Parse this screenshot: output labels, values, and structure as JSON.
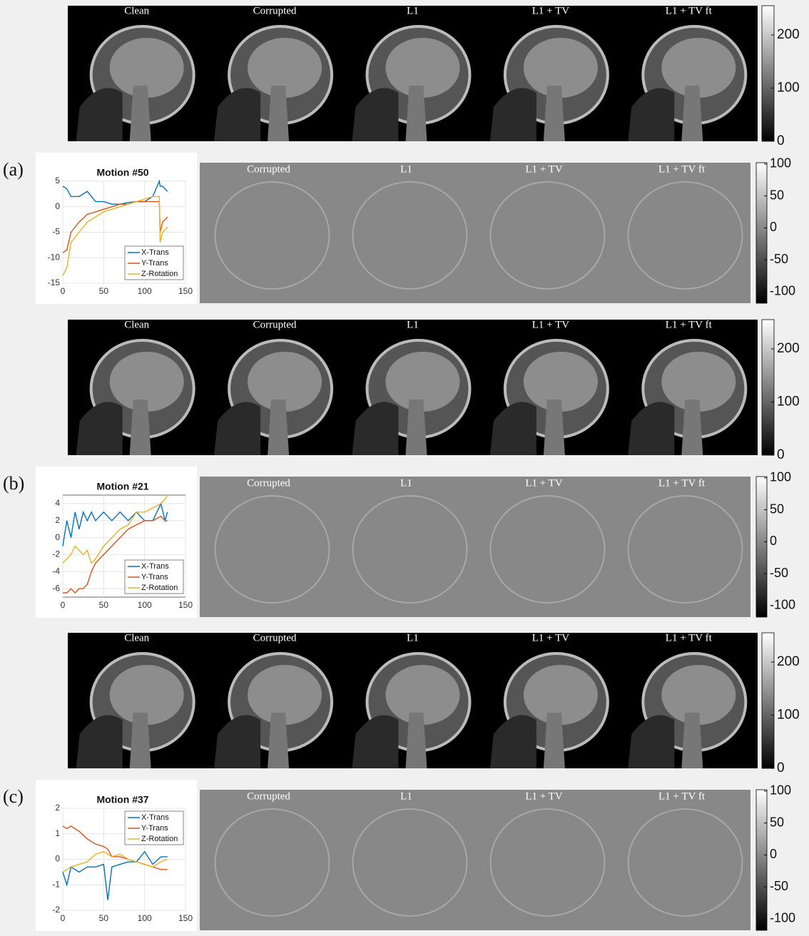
{
  "panels": [
    {
      "label": "(a)",
      "images": {
        "titles": [
          "Clean",
          "Corrupted",
          "L1",
          "L1 + TV",
          "L1 + TV ft"
        ],
        "colorbar": {
          "ylim": [
            0,
            255
          ],
          "yticks": [
            0,
            100,
            200
          ]
        }
      },
      "errors": {
        "titles": [
          "Corrupted",
          "L1",
          "L1 + TV",
          "L1 + TV ft"
        ],
        "colorbar": {
          "ylim": [
            -118,
            102
          ],
          "yticks": [
            100,
            50,
            0,
            -50,
            -100
          ]
        }
      },
      "chart_data": {
        "type": "line",
        "title": "Motion #50",
        "legend": "lower right",
        "grid": true,
        "x": [
          0,
          5,
          10,
          20,
          30,
          40,
          50,
          60,
          70,
          80,
          90,
          100,
          110,
          118,
          119,
          122,
          128
        ],
        "series": [
          {
            "name": "X-Trans",
            "color": "#0072bd",
            "values": [
              4,
              3.5,
              2,
              2,
              3,
              1,
              1,
              0.5,
              0.5,
              0.8,
              1,
              1,
              2,
              5,
              4,
              4,
              3
            ]
          },
          {
            "name": "Y-Trans",
            "color": "#d95319",
            "values": [
              -9,
              -8.5,
              -5,
              -3,
              -1.5,
              -1,
              -0.5,
              0,
              0.5,
              0.5,
              1,
              1,
              1,
              1,
              -5,
              -3,
              -2
            ]
          },
          {
            "name": "Z-Rotation",
            "color": "#edb120",
            "values": [
              -13.5,
              -12,
              -7,
              -5,
              -3,
              -2,
              -1,
              -0.5,
              0,
              0.5,
              1,
              1.5,
              2,
              2,
              -7,
              -5,
              -4
            ]
          }
        ],
        "xlim": [
          0,
          150
        ],
        "xticks": [
          0,
          50,
          100,
          150
        ],
        "ylim": [
          -15,
          5
        ],
        "yticks": [
          5,
          0,
          -5,
          -10,
          -15
        ]
      }
    },
    {
      "label": "(b)",
      "images": {
        "titles": [
          "Clean",
          "Corrupted",
          "L1",
          "L1 + TV",
          "L1 + TV ft"
        ],
        "colorbar": {
          "ylim": [
            0,
            255
          ],
          "yticks": [
            0,
            100,
            200
          ]
        }
      },
      "errors": {
        "titles": [
          "Corrupted",
          "L1",
          "L1 + TV",
          "L1 + TV ft"
        ],
        "colorbar": {
          "ylim": [
            -118,
            102
          ],
          "yticks": [
            100,
            50,
            0,
            -50,
            -100
          ]
        }
      },
      "chart_data": {
        "type": "line",
        "title": "Motion #21",
        "legend": "lower right",
        "grid": true,
        "x": [
          0,
          5,
          10,
          15,
          20,
          25,
          30,
          35,
          40,
          50,
          60,
          70,
          80,
          90,
          100,
          110,
          120,
          125,
          128
        ],
        "series": [
          {
            "name": "X-Trans",
            "color": "#0072bd",
            "values": [
              -1,
              2,
              0,
              3,
              1,
              3,
              2,
              3,
              2,
              3,
              2,
              3,
              2,
              3,
              2,
              2,
              4,
              2,
              3
            ]
          },
          {
            "name": "Y-Trans",
            "color": "#d95319",
            "values": [
              -6.5,
              -6.5,
              -6,
              -6.5,
              -6,
              -6,
              -5.5,
              -4,
              -3,
              -2,
              -1,
              0,
              1,
              1.5,
              2,
              2,
              2.5,
              2,
              2
            ]
          },
          {
            "name": "Z-Rotation",
            "color": "#edb120",
            "values": [
              -3,
              -2.5,
              -2,
              -1,
              -1.5,
              -2,
              -1.5,
              -3,
              -2.5,
              -1,
              0,
              1,
              1.5,
              3,
              3,
              3.5,
              4,
              4.5,
              5
            ]
          }
        ],
        "xlim": [
          0,
          150
        ],
        "xticks": [
          0,
          50,
          100,
          150
        ],
        "ylim": [
          -7,
          5
        ],
        "yticks": [
          4,
          2,
          0,
          -2,
          -4,
          -6
        ]
      }
    },
    {
      "label": "(c)",
      "images": {
        "titles": [
          "Clean",
          "Corrupted",
          "L1",
          "L1 + TV",
          "L1 + TV ft"
        ],
        "colorbar": {
          "ylim": [
            0,
            255
          ],
          "yticks": [
            0,
            100,
            200
          ]
        }
      },
      "errors": {
        "titles": [
          "Corrupted",
          "L1",
          "L1 + TV",
          "L1 + TV ft"
        ],
        "colorbar": {
          "ylim": [
            -118,
            102
          ],
          "yticks": [
            100,
            50,
            0,
            -50,
            -100
          ]
        }
      },
      "chart_data": {
        "type": "line",
        "title": "Motion #37",
        "legend": "upper right",
        "grid": true,
        "x": [
          0,
          5,
          10,
          20,
          30,
          40,
          50,
          55,
          60,
          70,
          80,
          90,
          100,
          110,
          120,
          128
        ],
        "series": [
          {
            "name": "X-Trans",
            "color": "#0072bd",
            "values": [
              -0.5,
              -1,
              -0.3,
              -0.5,
              -0.3,
              -0.3,
              -0.2,
              -1.6,
              -0.3,
              -0.2,
              -0.1,
              -0.1,
              0.3,
              -0.2,
              0.1,
              0.1
            ]
          },
          {
            "name": "Y-Trans",
            "color": "#d95319",
            "values": [
              1.3,
              1.2,
              1.3,
              1.1,
              0.8,
              0.6,
              0.5,
              0.4,
              0.1,
              0.1,
              0,
              -0.1,
              -0.2,
              -0.3,
              -0.4,
              -0.4
            ]
          },
          {
            "name": "Z-Rotation",
            "color": "#edb120",
            "values": [
              -0.5,
              -0.4,
              -0.3,
              -0.2,
              -0.1,
              0.2,
              0.3,
              0.2,
              0.1,
              0.2,
              0,
              -0.1,
              -0.2,
              -0.3,
              -0.1,
              0
            ]
          }
        ],
        "xlim": [
          0,
          150
        ],
        "xticks": [
          0,
          50,
          100,
          150
        ],
        "ylim": [
          -2,
          2
        ],
        "yticks": [
          2,
          1,
          0,
          -1,
          -2
        ]
      }
    }
  ]
}
